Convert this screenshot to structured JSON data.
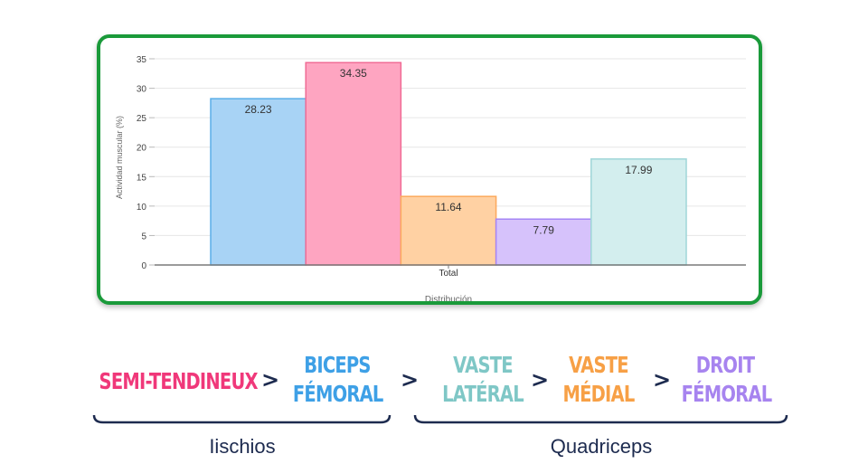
{
  "chart_data": {
    "type": "bar",
    "categories": [
      "Total"
    ],
    "series": [
      {
        "values": [
          28.23
        ],
        "color": "#a8d3f5",
        "stroke": "#5aaee8"
      },
      {
        "values": [
          34.35
        ],
        "color": "#fea5c1",
        "stroke": "#f06b95"
      },
      {
        "values": [
          11.64
        ],
        "color": "#ffd1a3",
        "stroke": "#fca95c"
      },
      {
        "values": [
          7.79
        ],
        "color": "#d6c2fb",
        "stroke": "#a585f5"
      },
      {
        "values": [
          17.99
        ],
        "color": "#d3eeee",
        "stroke": "#9fd6d8"
      }
    ],
    "data_labels": [
      "28.23",
      "34.35",
      "11.64",
      "7.79",
      "17.99"
    ],
    "ylim": [
      0,
      35
    ],
    "yticks": [
      0,
      5,
      10,
      15,
      20,
      25,
      30,
      35
    ],
    "ylabel": "Actividad muscular (%)",
    "xlabel": "Distribución",
    "grid": true,
    "frame_color": "#1a9a3a"
  },
  "muscle_order": {
    "terms": [
      {
        "lines": [
          "SEMI-TENDINEUX"
        ],
        "color": "#f0387a"
      },
      {
        "lines": [
          "BICEPS",
          "FÉMORAL"
        ],
        "color": "#3ea0e6"
      },
      {
        "lines": [
          "VASTE",
          "LATÉRAL"
        ],
        "color": "#7fc7c6"
      },
      {
        "lines": [
          "VASTE",
          "MÉDIAL"
        ],
        "color": "#f7a046"
      },
      {
        "lines": [
          "DROIT",
          "FÉMORAL"
        ],
        "color": "#a784ef"
      }
    ],
    "separator": ">"
  },
  "groups": {
    "left_label": "Iischios",
    "right_label": "Quadriceps",
    "brace_color": "#1d2b4f"
  }
}
